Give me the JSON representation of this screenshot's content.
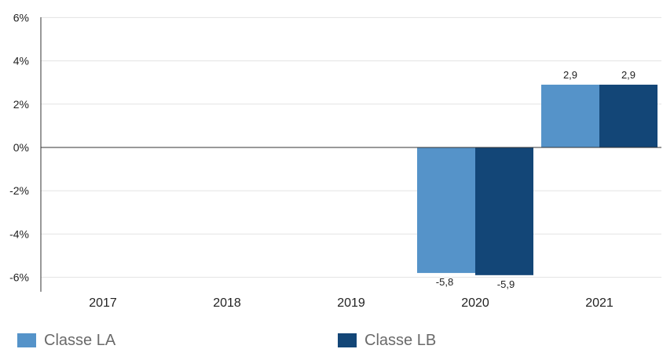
{
  "chart_data": {
    "type": "bar",
    "categories": [
      "2017",
      "2018",
      "2019",
      "2020",
      "2021"
    ],
    "series": [
      {
        "name": "Classe LA",
        "color": "#5593c9",
        "values": [
          null,
          null,
          null,
          -5.8,
          2.9
        ],
        "labels": [
          "",
          "",
          "",
          "-5,8",
          "2,9"
        ]
      },
      {
        "name": "Classe LB",
        "color": "#134677",
        "values": [
          null,
          null,
          null,
          -5.9,
          2.9
        ],
        "labels": [
          "",
          "",
          "",
          "-5,9",
          "2,9"
        ]
      }
    ],
    "ylim": [
      -6.5,
      6
    ],
    "yticks": [
      6,
      4,
      2,
      0,
      -2,
      -4,
      -6
    ],
    "ytick_labels": [
      "6%",
      "4%",
      "2%",
      "0%",
      "-2%",
      "-4%",
      "-6%"
    ],
    "grid": true,
    "legend_position": "bottom"
  }
}
